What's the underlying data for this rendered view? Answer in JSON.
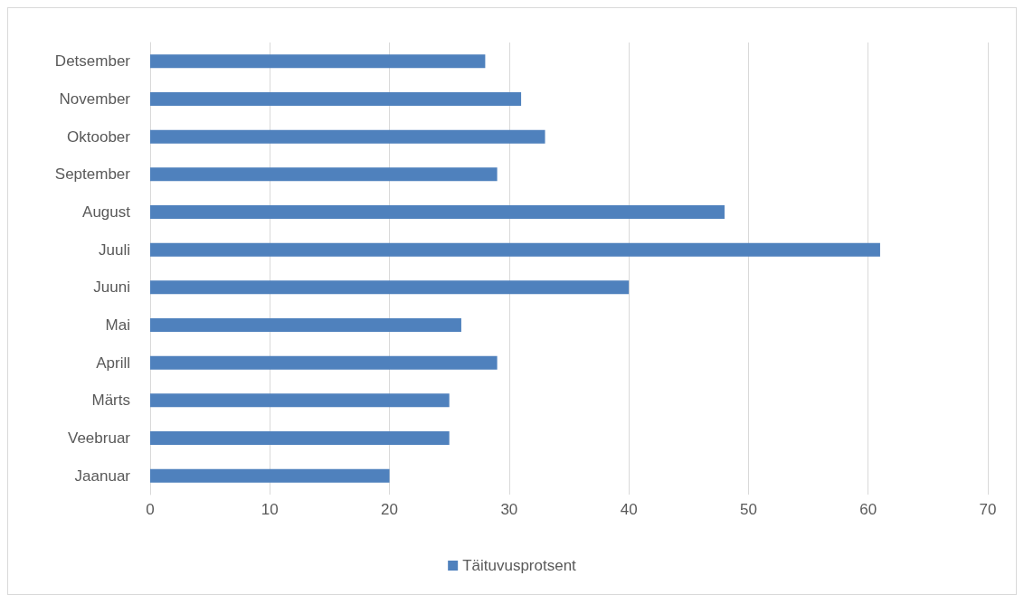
{
  "chart_data": {
    "type": "bar",
    "orientation": "horizontal",
    "categories": [
      "Detsember",
      "November",
      "Oktoober",
      "September",
      "August",
      "Juuli",
      "Juuni",
      "Mai",
      "Aprill",
      "Märts",
      "Veebruar",
      "Jaanuar"
    ],
    "series": [
      {
        "name": "Täituvusprotsent",
        "color": "#4f81bd",
        "values": [
          28,
          31,
          33,
          29,
          48,
          61,
          40,
          26,
          29,
          25,
          25,
          20
        ]
      }
    ],
    "xlim": [
      0,
      70
    ],
    "xticks": [
      0,
      10,
      20,
      30,
      40,
      50,
      60,
      70
    ],
    "grid": "x",
    "legend": "bottom"
  }
}
